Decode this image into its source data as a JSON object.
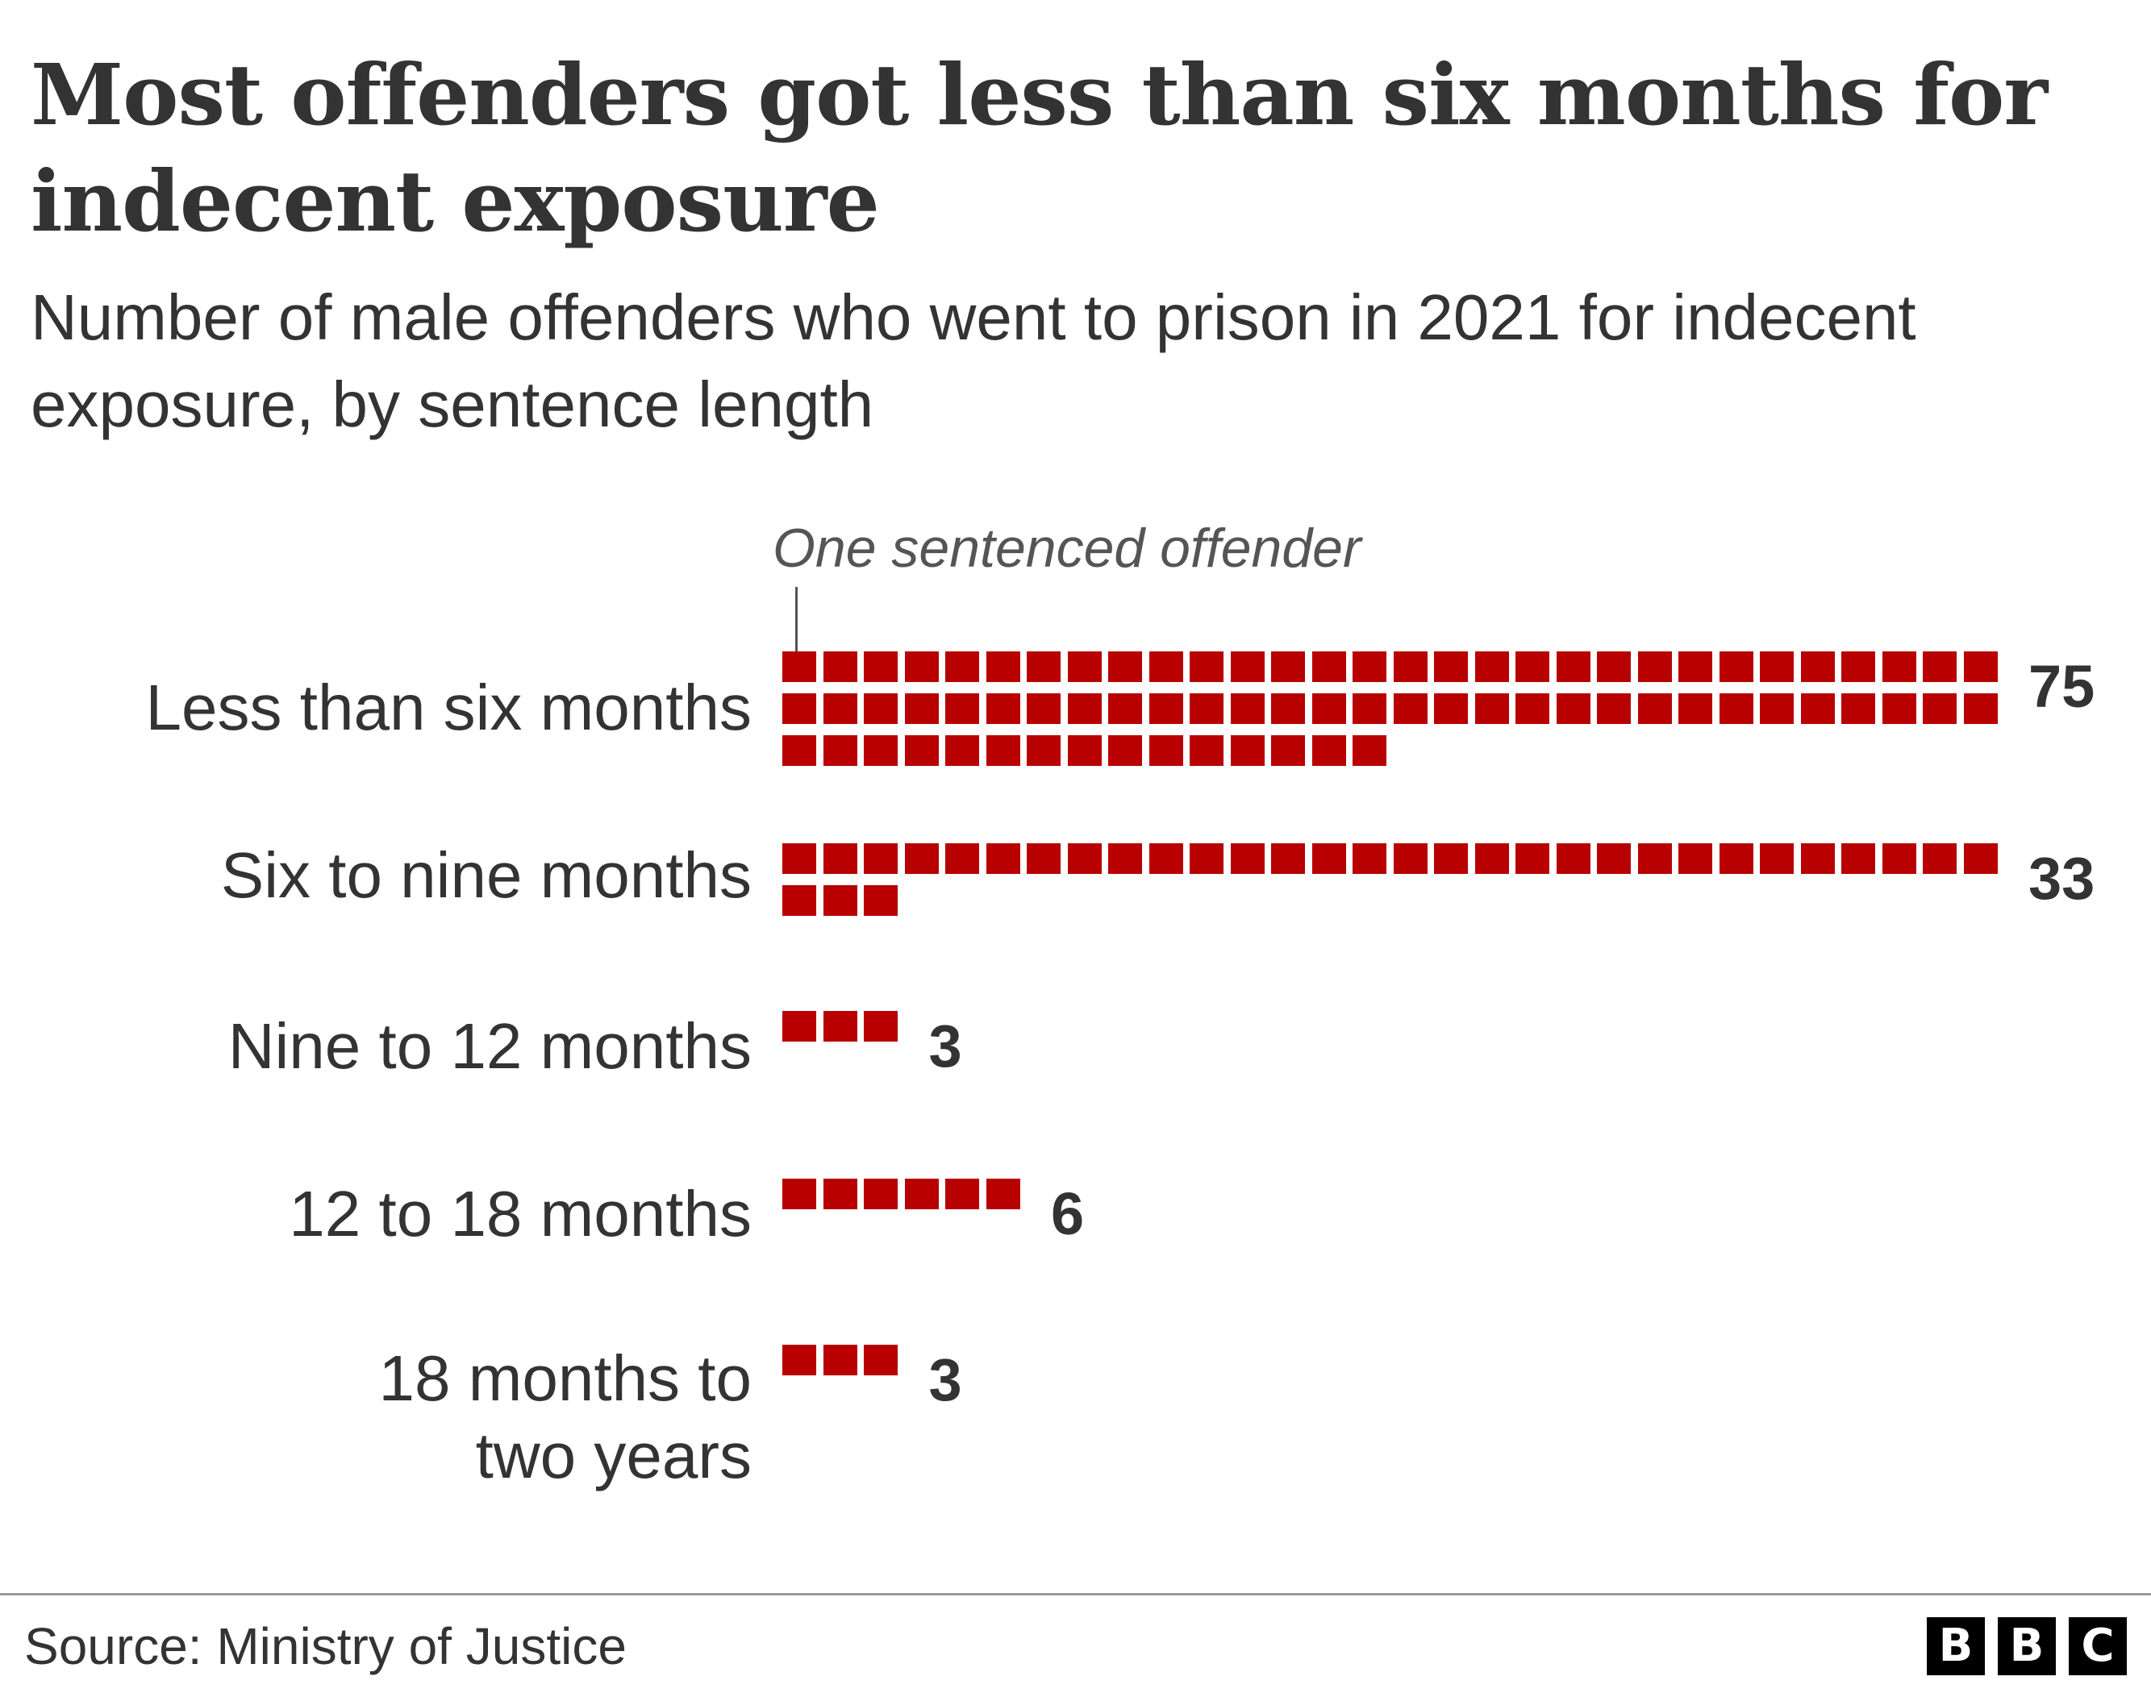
{
  "title": "Most offenders got less than six months for indecent exposure",
  "subtitle": "Number of male offenders who went to prison in 2021 for indecent exposure, by sentence length",
  "source": "Source: Ministry of Justice",
  "logo": [
    "B",
    "B",
    "C"
  ],
  "colors": {
    "square": "#b80000",
    "text": "#333333",
    "annotation": "#555555"
  },
  "chart_data": {
    "type": "waffle",
    "title": "Most offenders got less than six months for indecent exposure",
    "annotation": "One sentenced offender",
    "unit": "One sentenced offender",
    "categories": [
      "Less than six months",
      "Six to nine months",
      "Nine to 12 months",
      "12 to 18 months",
      "18 months to two years"
    ],
    "values": [
      75,
      33,
      3,
      6,
      3
    ],
    "value_labels": [
      "75",
      "33",
      "3",
      "6",
      "3"
    ],
    "squares_per_row": 30
  }
}
